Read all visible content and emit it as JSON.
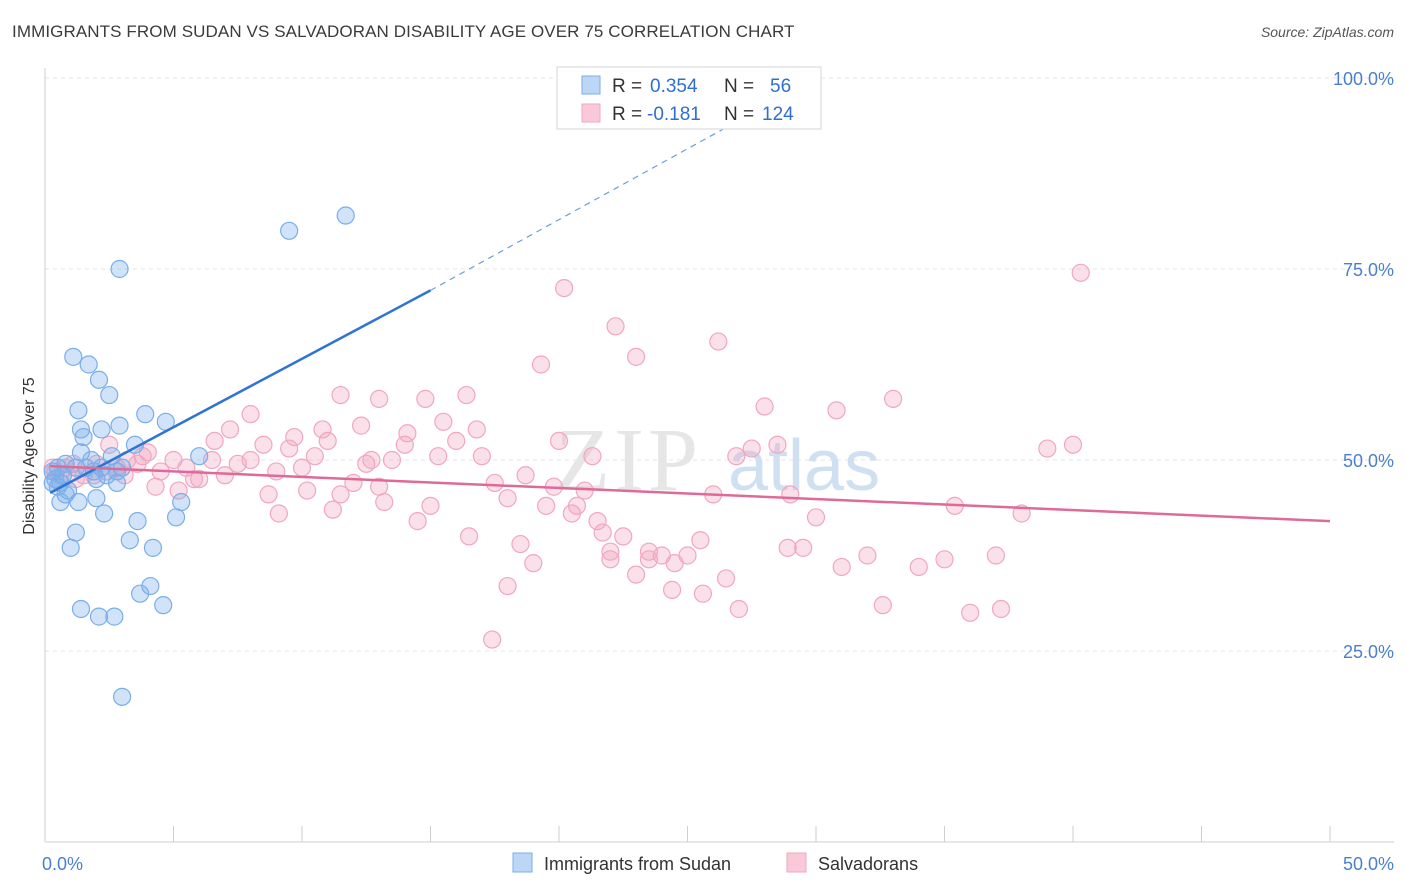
{
  "title": "IMMIGRANTS FROM SUDAN VS SALVADORAN DISABILITY AGE OVER 75 CORRELATION CHART",
  "source": "Source: ZipAtlas.com",
  "colors": {
    "blue": "#7aaeea",
    "blue_line": "#2f74d0",
    "pink": "#f2a6bf",
    "pink_line": "#e06a97"
  },
  "chart_data": {
    "type": "scatter",
    "title": "IMMIGRANTS FROM SUDAN VS SALVADORAN DISABILITY AGE OVER 75 CORRELATION CHART",
    "xlabel": "",
    "ylabel": "Disability Age Over 75",
    "xlim": [
      0,
      50
    ],
    "ylim": [
      0,
      100
    ],
    "x_tick_labels": [
      "0.0%",
      "50.0%"
    ],
    "y_ticks": [
      25,
      50,
      75,
      100
    ],
    "y_tick_labels": [
      "25.0%",
      "50.0%",
      "75.0%",
      "100.0%"
    ],
    "grid": true,
    "legend_position": "top-center",
    "legend": [
      {
        "r_label": "R =",
        "r_value": "0.354",
        "n_label": "N =",
        "n_value": "56"
      },
      {
        "r_label": "R =",
        "r_value": "-0.181",
        "n_label": "N =",
        "n_value": "124"
      }
    ],
    "series": [
      {
        "name": "Immigrants from Sudan",
        "color": "#7aaeea",
        "trend": {
          "x": [
            0.2,
            15
          ],
          "y": [
            45.7,
            72.2
          ],
          "dashed_to": [
            30,
            100
          ]
        },
        "points": [
          [
            0.3,
            48.5
          ],
          [
            0.4,
            47.5
          ],
          [
            0.5,
            46.5
          ],
          [
            0.6,
            47.0
          ],
          [
            0.7,
            48.0
          ],
          [
            0.8,
            45.5
          ],
          [
            0.9,
            46.0
          ],
          [
            0.5,
            49.0
          ],
          [
            0.6,
            44.5
          ],
          [
            1.0,
            38.5
          ],
          [
            1.2,
            40.5
          ],
          [
            1.3,
            44.5
          ],
          [
            1.4,
            51.0
          ],
          [
            1.5,
            53.0
          ],
          [
            1.6,
            49.0
          ],
          [
            1.8,
            50.0
          ],
          [
            2.0,
            47.5
          ],
          [
            2.2,
            49.0
          ],
          [
            2.4,
            48.0
          ],
          [
            2.6,
            50.5
          ],
          [
            2.8,
            48.5
          ],
          [
            3.0,
            49.0
          ],
          [
            1.7,
            62.5
          ],
          [
            2.1,
            60.5
          ],
          [
            2.5,
            58.5
          ],
          [
            1.1,
            63.5
          ],
          [
            1.3,
            56.5
          ],
          [
            1.4,
            54.0
          ],
          [
            2.2,
            54.0
          ],
          [
            2.9,
            54.5
          ],
          [
            2.0,
            45.0
          ],
          [
            2.3,
            43.0
          ],
          [
            3.3,
            39.5
          ],
          [
            4.2,
            38.5
          ],
          [
            1.4,
            30.5
          ],
          [
            2.1,
            29.5
          ],
          [
            2.7,
            29.5
          ],
          [
            3.7,
            32.5
          ],
          [
            5.1,
            42.5
          ],
          [
            4.7,
            55.0
          ],
          [
            3.5,
            52.0
          ],
          [
            3.9,
            56.0
          ],
          [
            6.0,
            50.5
          ],
          [
            3.0,
            19.0
          ],
          [
            4.1,
            33.5
          ],
          [
            4.6,
            31.0
          ],
          [
            3.6,
            42.0
          ],
          [
            2.8,
            47.0
          ],
          [
            9.5,
            80.0
          ],
          [
            11.7,
            82.0
          ],
          [
            2.9,
            75.0
          ],
          [
            5.3,
            44.5
          ],
          [
            1.9,
            48.5
          ],
          [
            1.2,
            49.0
          ],
          [
            0.8,
            49.5
          ],
          [
            0.3,
            47.0
          ]
        ]
      },
      {
        "name": "Salvadorans",
        "color": "#f2a6bf",
        "trend": {
          "x": [
            0.2,
            50
          ],
          "y": [
            49.2,
            42.0
          ]
        },
        "points": [
          [
            0.4,
            48.5
          ],
          [
            0.8,
            49.0
          ],
          [
            1.2,
            47.5
          ],
          [
            1.5,
            48.0
          ],
          [
            2.0,
            49.5
          ],
          [
            2.4,
            48.5
          ],
          [
            2.8,
            49.0
          ],
          [
            3.2,
            50.0
          ],
          [
            3.6,
            49.5
          ],
          [
            4.0,
            51.0
          ],
          [
            4.5,
            48.5
          ],
          [
            5.0,
            50.0
          ],
          [
            5.5,
            49.0
          ],
          [
            6.0,
            47.5
          ],
          [
            6.5,
            50.0
          ],
          [
            7.0,
            48.0
          ],
          [
            7.5,
            49.5
          ],
          [
            8.0,
            50.0
          ],
          [
            8.5,
            52.0
          ],
          [
            9.0,
            48.5
          ],
          [
            9.5,
            51.5
          ],
          [
            10.0,
            49.0
          ],
          [
            10.5,
            50.5
          ],
          [
            11.0,
            52.5
          ],
          [
            11.5,
            45.5
          ],
          [
            12.0,
            47.0
          ],
          [
            12.5,
            49.5
          ],
          [
            13.0,
            46.5
          ],
          [
            13.5,
            50.0
          ],
          [
            14.0,
            52.0
          ],
          [
            14.5,
            42.0
          ],
          [
            15.0,
            44.0
          ],
          [
            15.5,
            55.0
          ],
          [
            16.0,
            52.5
          ],
          [
            16.5,
            40.0
          ],
          [
            17.0,
            50.5
          ],
          [
            17.5,
            47.0
          ],
          [
            18.0,
            45.0
          ],
          [
            18.5,
            39.0
          ],
          [
            19.0,
            36.5
          ],
          [
            19.5,
            44.0
          ],
          [
            20.0,
            52.5
          ],
          [
            20.5,
            43.0
          ],
          [
            21.0,
            46.0
          ],
          [
            21.5,
            42.0
          ],
          [
            22.0,
            37.0
          ],
          [
            22.5,
            40.0
          ],
          [
            23.0,
            35.0
          ],
          [
            23.5,
            38.0
          ],
          [
            24.0,
            37.5
          ],
          [
            24.5,
            36.5
          ],
          [
            25.0,
            37.5
          ],
          [
            25.5,
            39.5
          ],
          [
            26.0,
            45.5
          ],
          [
            26.5,
            34.5
          ],
          [
            27.0,
            30.5
          ],
          [
            27.5,
            51.5
          ],
          [
            28.0,
            57.0
          ],
          [
            28.5,
            52.0
          ],
          [
            29.0,
            45.5
          ],
          [
            29.5,
            38.5
          ],
          [
            30.0,
            42.5
          ],
          [
            31.0,
            36.0
          ],
          [
            32.0,
            37.5
          ],
          [
            33.0,
            58.0
          ],
          [
            34.0,
            36.0
          ],
          [
            35.0,
            37.0
          ],
          [
            36.0,
            30.0
          ],
          [
            37.0,
            37.5
          ],
          [
            38.0,
            43.0
          ],
          [
            39.0,
            51.5
          ],
          [
            40.0,
            52.0
          ],
          [
            13.2,
            44.5
          ],
          [
            17.4,
            26.5
          ],
          [
            18.0,
            33.5
          ],
          [
            21.3,
            50.5
          ],
          [
            19.3,
            62.5
          ],
          [
            20.2,
            72.5
          ],
          [
            22.2,
            67.5
          ],
          [
            23.0,
            63.5
          ],
          [
            26.2,
            65.5
          ],
          [
            22.0,
            38.0
          ],
          [
            10.8,
            54.0
          ],
          [
            12.3,
            54.5
          ],
          [
            15.3,
            50.5
          ],
          [
            16.4,
            58.5
          ],
          [
            14.1,
            53.5
          ],
          [
            13.0,
            58.0
          ],
          [
            12.7,
            50.0
          ],
          [
            11.2,
            43.5
          ],
          [
            9.7,
            53.0
          ],
          [
            8.0,
            56.0
          ],
          [
            7.2,
            54.0
          ],
          [
            6.6,
            52.5
          ],
          [
            5.8,
            47.5
          ],
          [
            5.2,
            46.0
          ],
          [
            4.3,
            46.5
          ],
          [
            3.8,
            50.5
          ],
          [
            3.1,
            48.0
          ],
          [
            2.5,
            52.0
          ],
          [
            1.9,
            48.0
          ],
          [
            1.1,
            49.5
          ],
          [
            0.6,
            48.0
          ],
          [
            0.3,
            49.0
          ],
          [
            8.7,
            45.5
          ],
          [
            9.1,
            43.0
          ],
          [
            10.2,
            46.0
          ],
          [
            11.5,
            58.5
          ],
          [
            14.8,
            58.0
          ],
          [
            16.8,
            54.0
          ],
          [
            19.8,
            46.5
          ],
          [
            20.7,
            44.0
          ],
          [
            21.7,
            40.5
          ],
          [
            23.5,
            37.0
          ],
          [
            24.4,
            33.0
          ],
          [
            25.6,
            32.5
          ],
          [
            26.9,
            50.5
          ],
          [
            28.9,
            38.5
          ],
          [
            30.8,
            56.5
          ],
          [
            32.6,
            31.0
          ],
          [
            35.4,
            44.0
          ],
          [
            37.2,
            30.5
          ],
          [
            40.3,
            74.5
          ],
          [
            18.7,
            48.0
          ]
        ]
      }
    ]
  },
  "bottom_legend": [
    {
      "label": "Immigrants from Sudan"
    },
    {
      "label": "Salvadorans"
    }
  ],
  "watermark": {
    "zip": "ZIP",
    "atlas": "atlas"
  }
}
